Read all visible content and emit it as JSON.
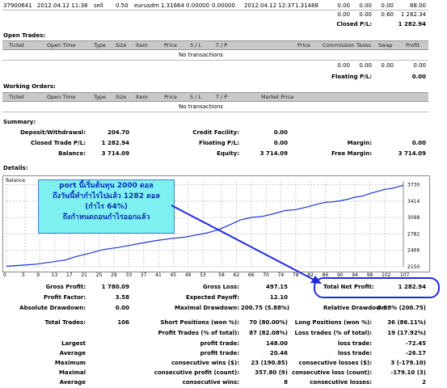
{
  "top_row": {
    "ticket": "37900641",
    "open_time": "2012.04.12 11:38",
    "type": "sell",
    "size": "0.50",
    "item": "eurusdm",
    "price": "1.31664",
    "sl": "0.00000",
    "tp": "0.00000",
    "close_time": "2012.04.12 12:37",
    "close_price": "1.31488",
    "commission": "0.00",
    "taxes": "0.00",
    "swap": "0.00",
    "profit": "88.00"
  },
  "closed_totals": {
    "commission": "0.00",
    "taxes": "0.00",
    "swap": "0.60",
    "profit": "1 282.34",
    "label": "Closed P/L:",
    "value": "1 282.94"
  },
  "open_trades": {
    "title": "Open Trades:",
    "headers": [
      "Ticket",
      "Open Time",
      "Type",
      "Size",
      "Item",
      "Price",
      "S / L",
      "T / P",
      "",
      "Price",
      "Commission",
      "Taxes",
      "Swap",
      "Profit"
    ],
    "empty": "No transactions",
    "commission": "0.00",
    "taxes": "0.00",
    "swap": "0.00",
    "profit": "0.00",
    "floating_label": "Floating P/L:",
    "floating_value": "0.00"
  },
  "working_orders": {
    "title": "Working Orders:",
    "headers": [
      "Ticket",
      "Open Time",
      "Type",
      "Size",
      "Item",
      "Price",
      "S / L",
      "T / P",
      "Market Price"
    ],
    "empty": "No transactions"
  },
  "summary": {
    "title": "Summary:",
    "deposit_label": "Deposit/Withdrawal:",
    "deposit_value": "204.70",
    "credit_label": "Credit Facility:",
    "credit_value": "0.00",
    "closed_label": "Closed Trade P/L:",
    "closed_value": "1 282.94",
    "floating_label": "Floating P/L:",
    "floating_value": "0.00",
    "margin_label": "Margin:",
    "margin_value": "0.00",
    "balance_label": "Balance:",
    "balance_value": "3 714.09",
    "equity_label": "Equity:",
    "equity_value": "3 714.09",
    "free_margin_label": "Free Margin:",
    "free_margin_value": "3 714.09"
  },
  "details": {
    "title": "Details:"
  },
  "annotation": {
    "line1": "port นี้เริ่มต้นทุน 2000 ดอล",
    "line2": "ถึงวันนี้ทำกำไรไปแล้ว 1282 ดอล",
    "line3": "(กำไร 64%)",
    "line4": "ถึงกำหนดถอนกำไรออกแล้ว",
    "color_text": "#0b2fb5",
    "color_bg": "#7ff0f0",
    "color_arrow": "#1f2ae0"
  },
  "chart_data": {
    "type": "line",
    "title": "Balance",
    "x_ticks": [
      0,
      5,
      9,
      13,
      17,
      21,
      25,
      29,
      33,
      37,
      41,
      45,
      49,
      53,
      58,
      62,
      66,
      70,
      74,
      78,
      82,
      86,
      90,
      94,
      98,
      102,
      107
    ],
    "y_ticks": [
      2150,
      2466,
      2782,
      3098,
      3414,
      3730
    ],
    "xlim": [
      0,
      107
    ],
    "ylim": [
      2150,
      3800
    ],
    "series": [
      {
        "x": [
          0,
          4,
          8,
          12,
          16,
          18,
          20,
          23,
          26,
          30,
          33,
          36,
          40,
          44,
          48,
          51,
          54,
          57,
          60,
          63,
          66,
          69,
          72,
          75,
          78,
          81,
          84,
          86,
          88,
          90,
          92,
          94,
          96,
          98,
          100,
          102,
          104,
          106,
          107
        ],
        "y": [
          2160,
          2180,
          2200,
          2240,
          2280,
          2330,
          2370,
          2420,
          2480,
          2520,
          2560,
          2600,
          2650,
          2690,
          2720,
          2760,
          2800,
          2860,
          2950,
          3050,
          3100,
          3120,
          3170,
          3230,
          3250,
          3300,
          3360,
          3390,
          3400,
          3420,
          3450,
          3490,
          3510,
          3560,
          3600,
          3640,
          3660,
          3700,
          3714
        ]
      }
    ],
    "grid": true
  },
  "stats": {
    "gross_profit_label": "Gross Profit:",
    "gross_profit": "1 780.09",
    "gross_loss_label": "Gross Loss:",
    "gross_loss": "497.15",
    "total_net_label": "Total Net Profit:",
    "total_net": "1 282.94",
    "profit_factor_label": "Profit Factor:",
    "profit_factor": "3.58",
    "expected_payoff_label": "Expected Payoff:",
    "expected_payoff": "12.10",
    "abs_dd_label": "Absolute Drawdown:",
    "abs_dd": "0.00",
    "max_dd_label": "Maximal Drawdown:",
    "max_dd": "200.75 (5.88%)",
    "rel_dd_label": "Relative Drawdown:",
    "rel_dd": "5.88% (200.75)",
    "total_trades_label": "Total Trades:",
    "total_trades": "106",
    "short_label": "Short Positions (won %):",
    "short": "70 (80.00%)",
    "long_label": "Long Positions (won %):",
    "long": "36 (86.11%)",
    "profit_trades_label": "Profit Trades (% of total):",
    "profit_trades": "87 (82.08%)",
    "loss_trades_label": "Loss trades (% of total):",
    "loss_trades": "19 (17.92%)",
    "largest_label": "Largest",
    "largest_profit_label": "profit trade:",
    "largest_profit": "148.00",
    "largest_loss_label": "loss trade:",
    "largest_loss": "-72.45",
    "average_label": "Average",
    "average_profit_label": "profit trade:",
    "average_profit": "20.46",
    "average_loss_label": "loss trade:",
    "average_loss": "-26.17",
    "maximum_label": "Maximum",
    "max_cons_wins_label": "consecutive wins ($):",
    "max_cons_wins": "23 (190.85)",
    "max_cons_losses_label": "consecutive losses ($):",
    "max_cons_losses": "3 (-179.10)",
    "maximal_label": "Maximal",
    "maximal_profit_label": "consecutive profit (count):",
    "maximal_profit": "357.80 (9)",
    "maximal_loss_label": "consecutive loss (count):",
    "maximal_loss": "-179.10 (3)",
    "average2_label": "Average",
    "avg_cons_wins_label": "consecutive wins:",
    "avg_cons_wins": "8",
    "avg_cons_losses_label": "consecutive losses:",
    "avg_cons_losses": "2"
  }
}
